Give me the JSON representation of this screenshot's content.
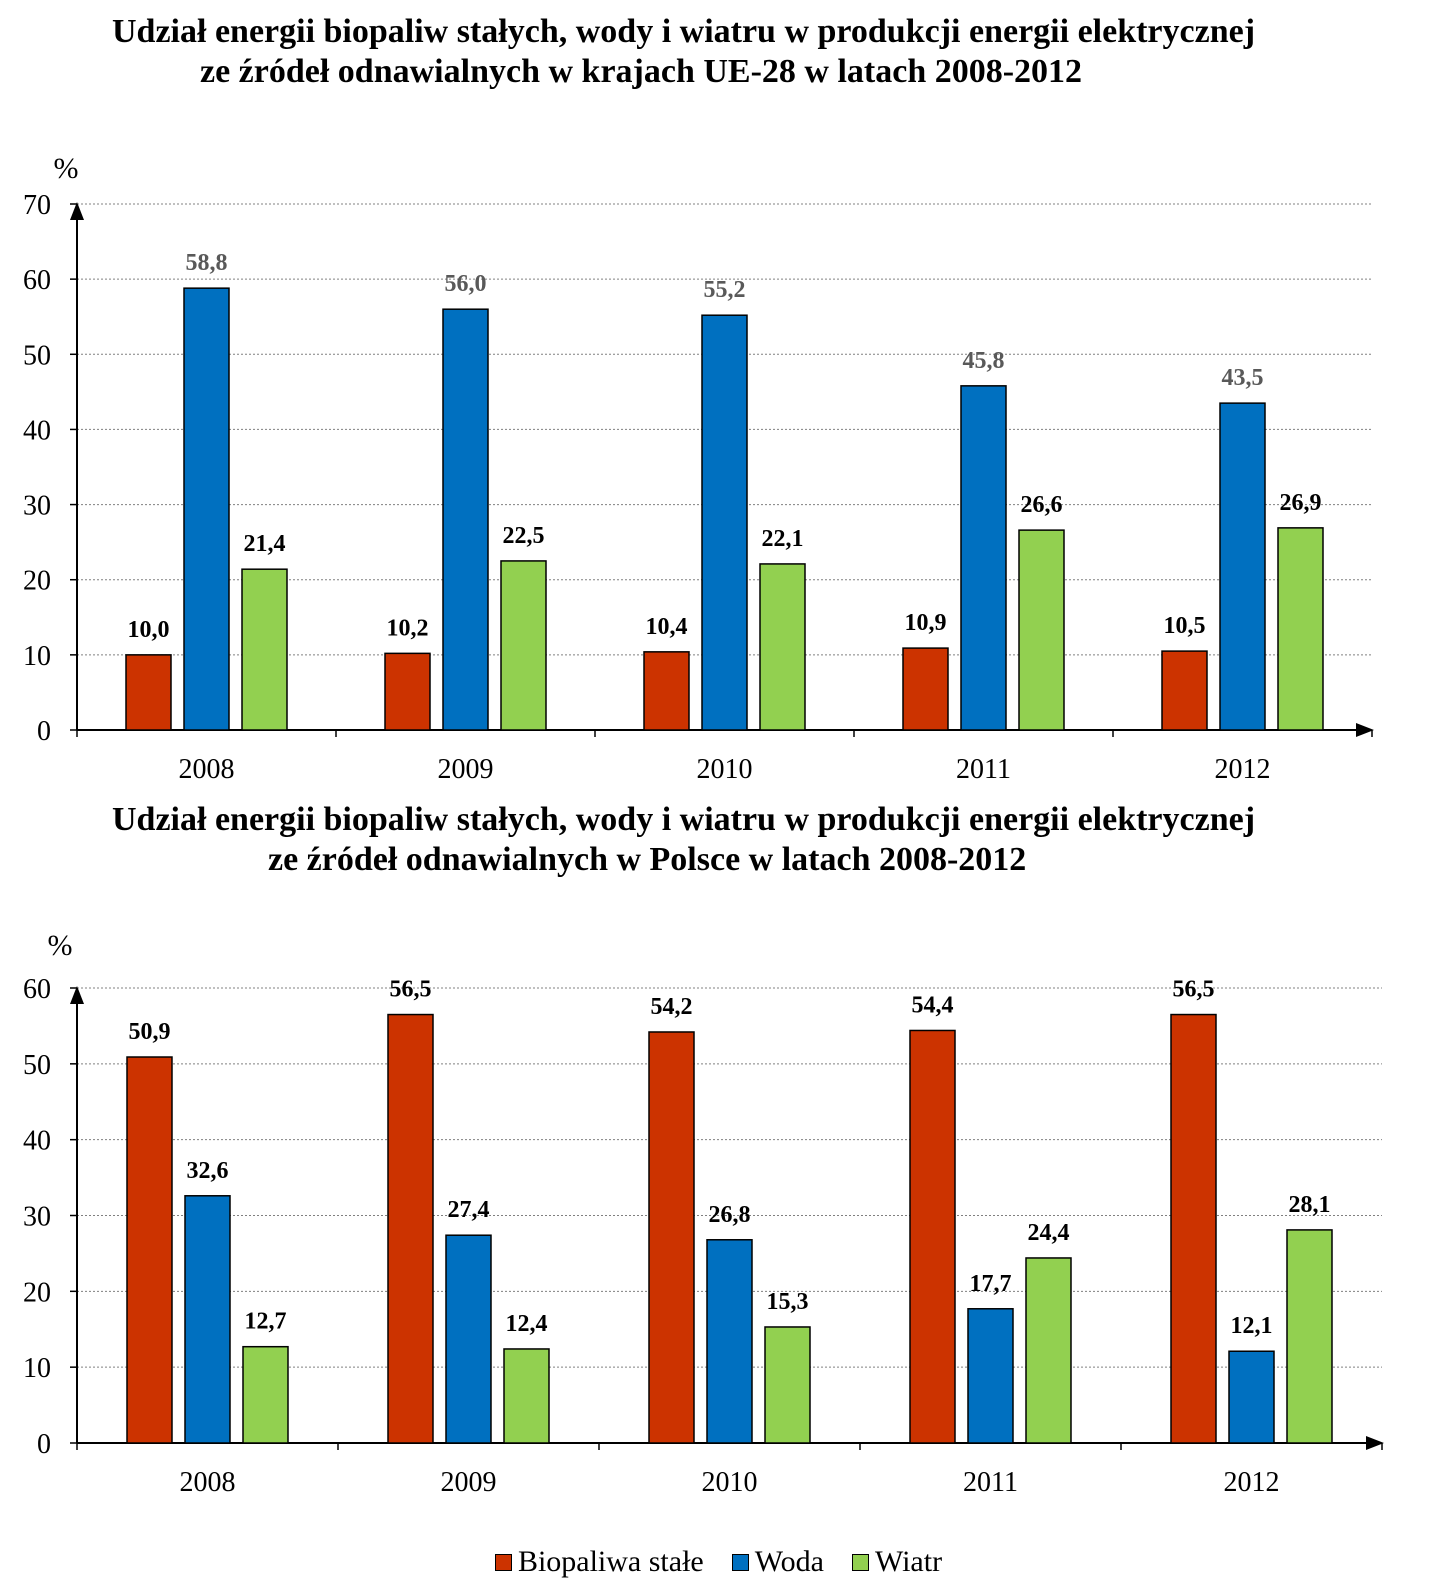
{
  "legend": [
    {
      "name": "Biopaliwa stałe",
      "color": "#CC3300"
    },
    {
      "name": "Woda",
      "color": "#0070C0"
    },
    {
      "name": "Wiatr",
      "color": "#92D050"
    }
  ],
  "chart_data": [
    {
      "type": "bar",
      "title_lines": [
        "Udział energii biopaliw stałych, wody i wiatru w produkcji energii elektrycznej",
        "ze źródeł odnawialnych w krajach UE-28 w latach 2008-2012"
      ],
      "ylabel": "%",
      "ylim": [
        0,
        70
      ],
      "yticks": [
        0,
        10,
        20,
        30,
        40,
        50,
        60,
        70
      ],
      "grid": true,
      "categories": [
        "2008",
        "2009",
        "2010",
        "2011",
        "2012"
      ],
      "series": [
        {
          "name": "Biopaliwa stałe",
          "color": "#CC3300",
          "values": [
            10.0,
            10.2,
            10.4,
            10.9,
            10.5
          ],
          "labels": [
            "10,0",
            "10,2",
            "10,4",
            "10,9",
            "10,5"
          ],
          "label_color": "#000000"
        },
        {
          "name": "Woda",
          "color": "#0070C0",
          "values": [
            58.8,
            56.0,
            55.2,
            45.8,
            43.5
          ],
          "labels": [
            "58,8",
            "56,0",
            "55,2",
            "45,8",
            "43,5"
          ],
          "label_color": "#595959"
        },
        {
          "name": "Wiatr",
          "color": "#92D050",
          "values": [
            21.4,
            22.5,
            22.1,
            26.6,
            26.9
          ],
          "labels": [
            "21,4",
            "22,5",
            "22,1",
            "26,6",
            "26,9"
          ],
          "label_color": "#000000"
        }
      ]
    },
    {
      "type": "bar",
      "title_lines": [
        "Udział energii biopaliw stałych, wody i wiatru w produkcji energii elektrycznej",
        "ze źródeł odnawialnych w Polsce w latach 2008-2012"
      ],
      "ylabel": "%",
      "ylim": [
        0,
        60
      ],
      "yticks": [
        0,
        10,
        20,
        30,
        40,
        50,
        60
      ],
      "grid": true,
      "categories": [
        "2008",
        "2009",
        "2010",
        "2011",
        "2012"
      ],
      "series": [
        {
          "name": "Biopaliwa stałe",
          "color": "#CC3300",
          "values": [
            50.9,
            56.5,
            54.2,
            54.4,
            56.5
          ],
          "labels": [
            "50,9",
            "56,5",
            "54,2",
            "54,4",
            "56,5"
          ],
          "label_color": "#000000"
        },
        {
          "name": "Woda",
          "color": "#0070C0",
          "values": [
            32.6,
            27.4,
            26.8,
            17.7,
            12.1
          ],
          "labels": [
            "32,6",
            "27,4",
            "26,8",
            "17,7",
            "12,1"
          ],
          "label_color": "#000000"
        },
        {
          "name": "Wiatr",
          "color": "#92D050",
          "values": [
            12.7,
            12.4,
            15.3,
            24.4,
            28.1
          ],
          "labels": [
            "12,7",
            "12,4",
            "15,3",
            "24,4",
            "28,1"
          ],
          "label_color": "#000000"
        }
      ]
    }
  ]
}
